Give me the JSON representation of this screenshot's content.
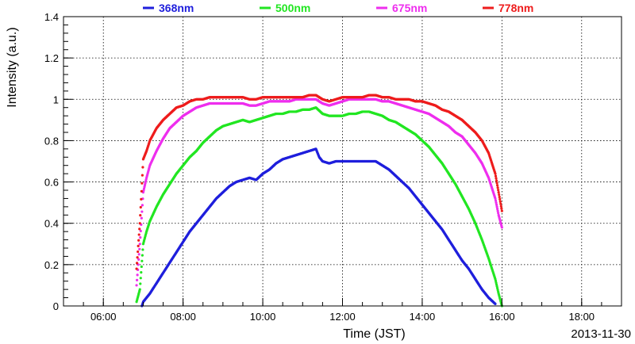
{
  "chart_data": {
    "type": "scatter",
    "xlabel": "Time (JST)",
    "ylabel": "Intensity (a.u.)",
    "date": "2013-11-30",
    "xlim": [
      "05:00",
      "19:00"
    ],
    "ylim": [
      0,
      1.4
    ],
    "grid": true,
    "legend": "top",
    "x_ticks": [
      "06:00",
      "08:00",
      "10:00",
      "12:00",
      "14:00",
      "16:00",
      "18:00"
    ],
    "y_ticks": [
      "0",
      "0.2",
      "0.4",
      "0.6",
      "0.8",
      "1",
      "1.2",
      "1.4"
    ],
    "series": [
      {
        "name": "368nm",
        "color": "#1f1fdc",
        "points": [
          [
            "06:58",
            0.0
          ],
          [
            "07:00",
            0.02
          ],
          [
            "07:10",
            0.06
          ],
          [
            "07:20",
            0.11
          ],
          [
            "07:30",
            0.16
          ],
          [
            "07:40",
            0.21
          ],
          [
            "07:50",
            0.26
          ],
          [
            "08:00",
            0.31
          ],
          [
            "08:10",
            0.36
          ],
          [
            "08:20",
            0.4
          ],
          [
            "08:30",
            0.44
          ],
          [
            "08:40",
            0.48
          ],
          [
            "08:50",
            0.52
          ],
          [
            "09:00",
            0.55
          ],
          [
            "09:10",
            0.58
          ],
          [
            "09:20",
            0.6
          ],
          [
            "09:30",
            0.61
          ],
          [
            "09:40",
            0.62
          ],
          [
            "09:50",
            0.61
          ],
          [
            "10:00",
            0.64
          ],
          [
            "10:10",
            0.66
          ],
          [
            "10:20",
            0.69
          ],
          [
            "10:30",
            0.71
          ],
          [
            "10:40",
            0.72
          ],
          [
            "10:50",
            0.73
          ],
          [
            "11:00",
            0.74
          ],
          [
            "11:10",
            0.75
          ],
          [
            "11:20",
            0.76
          ],
          [
            "11:25",
            0.72
          ],
          [
            "11:30",
            0.7
          ],
          [
            "11:40",
            0.69
          ],
          [
            "11:50",
            0.7
          ],
          [
            "12:00",
            0.7
          ],
          [
            "12:10",
            0.7
          ],
          [
            "12:20",
            0.7
          ],
          [
            "12:30",
            0.7
          ],
          [
            "12:40",
            0.7
          ],
          [
            "12:50",
            0.7
          ],
          [
            "13:00",
            0.68
          ],
          [
            "13:10",
            0.66
          ],
          [
            "13:20",
            0.63
          ],
          [
            "13:30",
            0.6
          ],
          [
            "13:40",
            0.57
          ],
          [
            "13:50",
            0.53
          ],
          [
            "14:00",
            0.49
          ],
          [
            "14:10",
            0.45
          ],
          [
            "14:20",
            0.41
          ],
          [
            "14:30",
            0.37
          ],
          [
            "14:40",
            0.32
          ],
          [
            "14:50",
            0.27
          ],
          [
            "15:00",
            0.22
          ],
          [
            "15:10",
            0.18
          ],
          [
            "15:20",
            0.13
          ],
          [
            "15:30",
            0.08
          ],
          [
            "15:40",
            0.04
          ],
          [
            "15:50",
            0.01
          ]
        ]
      },
      {
        "name": "500nm",
        "color": "#22e622",
        "points": [
          [
            "06:50",
            0.02
          ],
          [
            "06:55",
            0.08
          ],
          [
            "07:00",
            0.3
          ],
          [
            "07:05",
            0.36
          ],
          [
            "07:10",
            0.41
          ],
          [
            "07:20",
            0.48
          ],
          [
            "07:30",
            0.54
          ],
          [
            "07:40",
            0.59
          ],
          [
            "07:50",
            0.64
          ],
          [
            "08:00",
            0.68
          ],
          [
            "08:10",
            0.72
          ],
          [
            "08:20",
            0.75
          ],
          [
            "08:30",
            0.79
          ],
          [
            "08:40",
            0.82
          ],
          [
            "08:50",
            0.85
          ],
          [
            "09:00",
            0.87
          ],
          [
            "09:10",
            0.88
          ],
          [
            "09:20",
            0.89
          ],
          [
            "09:30",
            0.9
          ],
          [
            "09:40",
            0.89
          ],
          [
            "09:50",
            0.9
          ],
          [
            "10:00",
            0.91
          ],
          [
            "10:10",
            0.92
          ],
          [
            "10:20",
            0.93
          ],
          [
            "10:30",
            0.93
          ],
          [
            "10:40",
            0.94
          ],
          [
            "10:50",
            0.94
          ],
          [
            "11:00",
            0.95
          ],
          [
            "11:10",
            0.95
          ],
          [
            "11:20",
            0.96
          ],
          [
            "11:30",
            0.93
          ],
          [
            "11:40",
            0.92
          ],
          [
            "11:50",
            0.92
          ],
          [
            "12:00",
            0.92
          ],
          [
            "12:10",
            0.93
          ],
          [
            "12:20",
            0.93
          ],
          [
            "12:30",
            0.94
          ],
          [
            "12:40",
            0.94
          ],
          [
            "12:50",
            0.93
          ],
          [
            "13:00",
            0.92
          ],
          [
            "13:10",
            0.9
          ],
          [
            "13:20",
            0.89
          ],
          [
            "13:30",
            0.87
          ],
          [
            "13:40",
            0.85
          ],
          [
            "13:50",
            0.83
          ],
          [
            "14:00",
            0.8
          ],
          [
            "14:10",
            0.77
          ],
          [
            "14:20",
            0.73
          ],
          [
            "14:30",
            0.69
          ],
          [
            "14:40",
            0.64
          ],
          [
            "14:50",
            0.59
          ],
          [
            "15:00",
            0.53
          ],
          [
            "15:10",
            0.47
          ],
          [
            "15:20",
            0.4
          ],
          [
            "15:30",
            0.32
          ],
          [
            "15:40",
            0.23
          ],
          [
            "15:50",
            0.13
          ],
          [
            "15:55",
            0.06
          ],
          [
            "16:00",
            0.0
          ]
        ]
      },
      {
        "name": "675nm",
        "color": "#ee2eee",
        "points": [
          [
            "06:50",
            0.1
          ],
          [
            "06:55",
            0.3
          ],
          [
            "07:00",
            0.55
          ],
          [
            "07:05",
            0.62
          ],
          [
            "07:10",
            0.68
          ],
          [
            "07:20",
            0.75
          ],
          [
            "07:30",
            0.81
          ],
          [
            "07:40",
            0.86
          ],
          [
            "07:50",
            0.89
          ],
          [
            "08:00",
            0.92
          ],
          [
            "08:10",
            0.94
          ],
          [
            "08:20",
            0.96
          ],
          [
            "08:30",
            0.97
          ],
          [
            "08:40",
            0.98
          ],
          [
            "08:50",
            0.98
          ],
          [
            "09:00",
            0.98
          ],
          [
            "09:10",
            0.98
          ],
          [
            "09:20",
            0.98
          ],
          [
            "09:30",
            0.98
          ],
          [
            "09:40",
            0.97
          ],
          [
            "09:50",
            0.97
          ],
          [
            "10:00",
            0.98
          ],
          [
            "10:10",
            0.99
          ],
          [
            "10:20",
            0.99
          ],
          [
            "10:30",
            0.99
          ],
          [
            "10:40",
            0.99
          ],
          [
            "10:50",
            1.0
          ],
          [
            "11:00",
            1.0
          ],
          [
            "11:10",
            1.0
          ],
          [
            "11:20",
            1.0
          ],
          [
            "11:30",
            0.98
          ],
          [
            "11:40",
            0.97
          ],
          [
            "11:50",
            0.98
          ],
          [
            "12:00",
            0.99
          ],
          [
            "12:10",
            1.0
          ],
          [
            "12:20",
            1.0
          ],
          [
            "12:30",
            1.0
          ],
          [
            "12:40",
            1.0
          ],
          [
            "12:50",
            1.0
          ],
          [
            "13:00",
            0.99
          ],
          [
            "13:10",
            0.99
          ],
          [
            "13:20",
            0.98
          ],
          [
            "13:30",
            0.97
          ],
          [
            "13:40",
            0.96
          ],
          [
            "13:50",
            0.95
          ],
          [
            "14:00",
            0.94
          ],
          [
            "14:10",
            0.93
          ],
          [
            "14:20",
            0.91
          ],
          [
            "14:30",
            0.89
          ],
          [
            "14:40",
            0.87
          ],
          [
            "14:50",
            0.84
          ],
          [
            "15:00",
            0.82
          ],
          [
            "15:10",
            0.78
          ],
          [
            "15:20",
            0.74
          ],
          [
            "15:30",
            0.69
          ],
          [
            "15:40",
            0.62
          ],
          [
            "15:50",
            0.52
          ],
          [
            "15:55",
            0.44
          ],
          [
            "16:00",
            0.38
          ]
        ]
      },
      {
        "name": "778nm",
        "color": "#ee1c1c",
        "points": [
          [
            "06:50",
            0.18
          ],
          [
            "06:55",
            0.4
          ],
          [
            "07:00",
            0.71
          ],
          [
            "07:05",
            0.75
          ],
          [
            "07:10",
            0.8
          ],
          [
            "07:20",
            0.86
          ],
          [
            "07:30",
            0.9
          ],
          [
            "07:40",
            0.93
          ],
          [
            "07:50",
            0.96
          ],
          [
            "08:00",
            0.97
          ],
          [
            "08:10",
            0.99
          ],
          [
            "08:20",
            1.0
          ],
          [
            "08:30",
            1.0
          ],
          [
            "08:40",
            1.01
          ],
          [
            "08:50",
            1.01
          ],
          [
            "09:00",
            1.01
          ],
          [
            "09:10",
            1.01
          ],
          [
            "09:20",
            1.01
          ],
          [
            "09:30",
            1.01
          ],
          [
            "09:40",
            1.0
          ],
          [
            "09:50",
            1.0
          ],
          [
            "10:00",
            1.01
          ],
          [
            "10:10",
            1.01
          ],
          [
            "10:20",
            1.01
          ],
          [
            "10:30",
            1.01
          ],
          [
            "10:40",
            1.01
          ],
          [
            "10:50",
            1.01
          ],
          [
            "11:00",
            1.01
          ],
          [
            "11:10",
            1.02
          ],
          [
            "11:20",
            1.02
          ],
          [
            "11:30",
            1.0
          ],
          [
            "11:40",
            0.99
          ],
          [
            "11:50",
            1.0
          ],
          [
            "12:00",
            1.01
          ],
          [
            "12:10",
            1.01
          ],
          [
            "12:20",
            1.01
          ],
          [
            "12:30",
            1.01
          ],
          [
            "12:40",
            1.02
          ],
          [
            "12:50",
            1.02
          ],
          [
            "13:00",
            1.01
          ],
          [
            "13:10",
            1.01
          ],
          [
            "13:20",
            1.0
          ],
          [
            "13:30",
            1.0
          ],
          [
            "13:40",
            1.0
          ],
          [
            "13:50",
            0.99
          ],
          [
            "14:00",
            0.99
          ],
          [
            "14:10",
            0.98
          ],
          [
            "14:20",
            0.97
          ],
          [
            "14:30",
            0.95
          ],
          [
            "14:40",
            0.94
          ],
          [
            "14:50",
            0.92
          ],
          [
            "15:00",
            0.9
          ],
          [
            "15:10",
            0.87
          ],
          [
            "15:20",
            0.84
          ],
          [
            "15:30",
            0.8
          ],
          [
            "15:40",
            0.74
          ],
          [
            "15:50",
            0.64
          ],
          [
            "15:55",
            0.55
          ],
          [
            "16:00",
            0.46
          ]
        ]
      }
    ]
  }
}
